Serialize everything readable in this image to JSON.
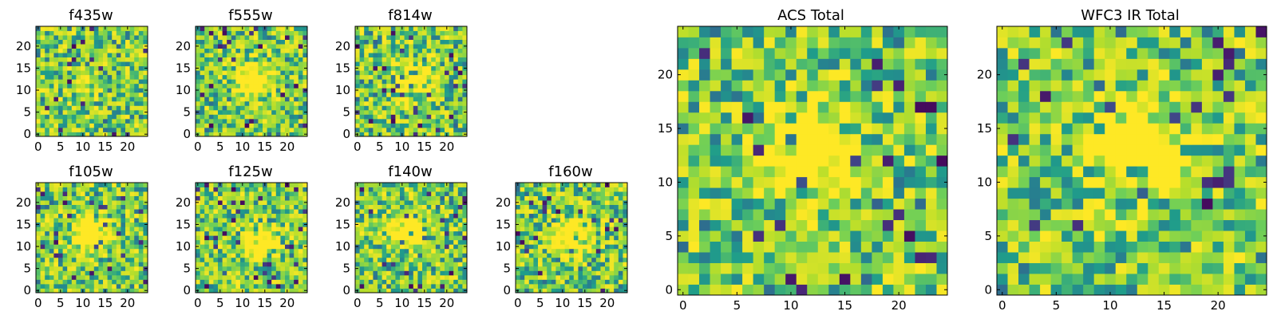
{
  "chart_data": [
    {
      "type": "heatmap",
      "title": "f435w",
      "xticks": [
        "0",
        "5",
        "10",
        "15",
        "20"
      ],
      "yticks": [
        "0",
        "5",
        "10",
        "15",
        "20"
      ],
      "grid_size": 25,
      "colormap": "viridis",
      "seed": 435,
      "blob": {
        "x": 12,
        "y": 10,
        "strength": 0.05
      }
    },
    {
      "type": "heatmap",
      "title": "f555w",
      "xticks": [
        "0",
        "5",
        "10",
        "15",
        "20"
      ],
      "yticks": [
        "0",
        "5",
        "10",
        "15",
        "20"
      ],
      "grid_size": 25,
      "colormap": "viridis",
      "seed": 555,
      "blob": {
        "x": 12,
        "y": 13,
        "strength": 0.35
      }
    },
    {
      "type": "heatmap",
      "title": "f814w",
      "xticks": [
        "0",
        "5",
        "10",
        "15",
        "20"
      ],
      "yticks": [
        "0",
        "5",
        "10",
        "15",
        "20"
      ],
      "grid_size": 25,
      "colormap": "viridis",
      "seed": 814,
      "blob": {
        "x": 13,
        "y": 13,
        "strength": 0.4
      }
    },
    {
      "type": "heatmap",
      "title": "f105w",
      "xticks": [
        "0",
        "5",
        "10",
        "15",
        "20"
      ],
      "yticks": [
        "0",
        "5",
        "10",
        "15",
        "20"
      ],
      "grid_size": 25,
      "colormap": "viridis",
      "seed": 105,
      "blob": {
        "x": 12,
        "y": 13,
        "strength": 0.45
      }
    },
    {
      "type": "heatmap",
      "title": "f125w",
      "xticks": [
        "0",
        "5",
        "10",
        "15",
        "20"
      ],
      "yticks": [
        "0",
        "5",
        "10",
        "15",
        "20"
      ],
      "grid_size": 25,
      "colormap": "viridis",
      "seed": 125,
      "blob": {
        "x": 14,
        "y": 11,
        "strength": 0.45
      }
    },
    {
      "type": "heatmap",
      "title": "f140w",
      "xticks": [
        "0",
        "5",
        "10",
        "15",
        "20"
      ],
      "yticks": [
        "0",
        "5",
        "10",
        "15",
        "20"
      ],
      "grid_size": 25,
      "colormap": "viridis",
      "seed": 140,
      "blob": {
        "x": 11,
        "y": 13,
        "strength": 0.5
      }
    },
    {
      "type": "heatmap",
      "title": "f160w",
      "xticks": [
        "0",
        "5",
        "10",
        "15",
        "20"
      ],
      "yticks": [
        "0",
        "5",
        "10",
        "15",
        "20"
      ],
      "grid_size": 25,
      "colormap": "viridis",
      "seed": 160,
      "blob": {
        "x": 12,
        "y": 12,
        "strength": 0.55
      }
    },
    {
      "type": "heatmap",
      "title": "ACS Total",
      "xticks": [
        "0",
        "5",
        "10",
        "15",
        "20"
      ],
      "yticks": [
        "0",
        "5",
        "10",
        "15",
        "20"
      ],
      "grid_size": 25,
      "colormap": "viridis",
      "seed": 1001,
      "blob": {
        "x": 12,
        "y": 13,
        "strength": 0.5
      }
    },
    {
      "type": "heatmap",
      "title": "WFC3 IR Total",
      "xticks": [
        "0",
        "5",
        "10",
        "15",
        "20"
      ],
      "yticks": [
        "0",
        "5",
        "10",
        "15",
        "20"
      ],
      "grid_size": 25,
      "colormap": "viridis",
      "seed": 2002,
      "blob": {
        "x": 13,
        "y": 13,
        "strength": 0.6
      }
    }
  ]
}
